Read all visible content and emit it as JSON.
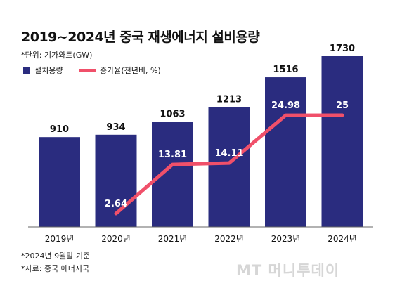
{
  "title": "2019~2024년 중국 재생에너지 설비용량",
  "unit_note": "*단위: 기가와트(GW)",
  "footnote": "*2024년 9월말 기준",
  "source": "*자료: 중국 에너지국",
  "watermark": "MT 머니투데이",
  "colors": {
    "bar": "#2a2c7f",
    "line": "#f0506a",
    "background": "#ffffff"
  },
  "chart_data": {
    "type": "bar",
    "categories": [
      "2019년",
      "2020년",
      "2021년",
      "2022년",
      "2023년",
      "2024년"
    ],
    "series": [
      {
        "name": "설치용량",
        "type": "bar",
        "values": [
          910,
          934,
          1063,
          1213,
          1516,
          1730
        ]
      },
      {
        "name": "증가율(전년비, %)",
        "type": "line",
        "values": [
          null,
          2.64,
          13.81,
          14.11,
          24.98,
          25
        ]
      }
    ],
    "value_labels": {
      "bars": [
        "910",
        "934",
        "1063",
        "1213",
        "1516",
        "1730"
      ],
      "line": [
        "",
        "2.64",
        "13.81",
        "14.11",
        "24.98",
        "25"
      ]
    },
    "legend": {
      "position": "top-left",
      "items": [
        "설치용량",
        "증가율(전년비, %)"
      ]
    },
    "grid": false
  }
}
